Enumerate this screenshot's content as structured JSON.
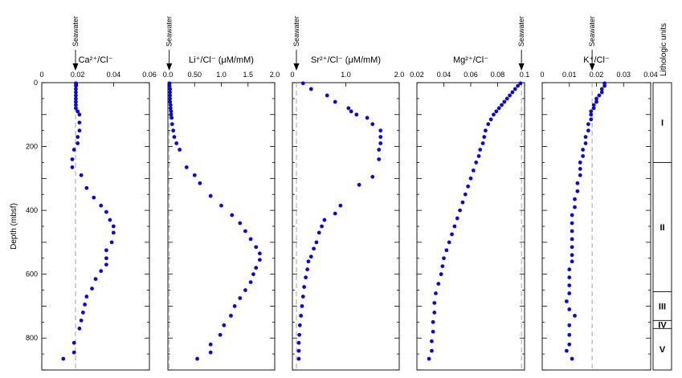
{
  "depth_axis": {
    "label": "Depth (mbsf)",
    "ylim": [
      0,
      900
    ],
    "ticks": [
      0,
      200,
      400,
      600,
      800
    ],
    "minor_step": 50,
    "inverted": true
  },
  "colors": {
    "points": "#0a0ad0",
    "seawater_line": "#999999",
    "axes": "#000000"
  },
  "seawater_label": "Seawater",
  "chart_data": [
    {
      "type": "scatter",
      "title": "Ca²⁺/Cl⁻",
      "xlim": [
        0,
        0.06
      ],
      "ticks": [
        "0",
        "0.02",
        "0.04",
        "0.06"
      ],
      "tick_values": [
        0,
        0.02,
        0.04,
        0.06
      ],
      "seawater": 0.0188,
      "points": [
        [
          0.019,
          2
        ],
        [
          0.019,
          10
        ],
        [
          0.019,
          20
        ],
        [
          0.019,
          30
        ],
        [
          0.019,
          40
        ],
        [
          0.019,
          50
        ],
        [
          0.019,
          60
        ],
        [
          0.019,
          70
        ],
        [
          0.019,
          80
        ],
        [
          0.02,
          90
        ],
        [
          0.021,
          100
        ],
        [
          0.021,
          125
        ],
        [
          0.021,
          150
        ],
        [
          0.02,
          170
        ],
        [
          0.02,
          190
        ],
        [
          0.018,
          210
        ],
        [
          0.017,
          240
        ],
        [
          0.017,
          265
        ],
        [
          0.022,
          290
        ],
        [
          0.025,
          330
        ],
        [
          0.029,
          360
        ],
        [
          0.033,
          385
        ],
        [
          0.036,
          405
        ],
        [
          0.038,
          430
        ],
        [
          0.04,
          450
        ],
        [
          0.04,
          470
        ],
        [
          0.039,
          500
        ],
        [
          0.036,
          525
        ],
        [
          0.036,
          550
        ],
        [
          0.036,
          570
        ],
        [
          0.033,
          590
        ],
        [
          0.03,
          615
        ],
        [
          0.028,
          645
        ],
        [
          0.025,
          670
        ],
        [
          0.024,
          695
        ],
        [
          0.023,
          720
        ],
        [
          0.022,
          745
        ],
        [
          0.021,
          770
        ],
        [
          0.018,
          815
        ],
        [
          0.018,
          845
        ],
        [
          0.012,
          865
        ]
      ]
    },
    {
      "type": "scatter",
      "title": "Li⁺/Cl⁻ (μM/mM)",
      "xlim": [
        0,
        2.0
      ],
      "ticks": [
        "0.0",
        "0.50",
        "1.0",
        "1.5",
        "2.0"
      ],
      "tick_values": [
        0,
        0.5,
        1.0,
        1.5,
        2.0
      ],
      "seawater": 0.025,
      "points": [
        [
          0.03,
          2
        ],
        [
          0.03,
          10
        ],
        [
          0.04,
          20
        ],
        [
          0.04,
          30
        ],
        [
          0.04,
          40
        ],
        [
          0.04,
          50
        ],
        [
          0.04,
          60
        ],
        [
          0.05,
          70
        ],
        [
          0.05,
          80
        ],
        [
          0.06,
          90
        ],
        [
          0.06,
          100
        ],
        [
          0.07,
          110
        ],
        [
          0.08,
          130
        ],
        [
          0.1,
          150
        ],
        [
          0.12,
          170
        ],
        [
          0.16,
          190
        ],
        [
          0.22,
          210
        ],
        [
          0.35,
          265
        ],
        [
          0.5,
          290
        ],
        [
          0.6,
          315
        ],
        [
          0.8,
          355
        ],
        [
          1.0,
          385
        ],
        [
          1.2,
          415
        ],
        [
          1.35,
          440
        ],
        [
          1.45,
          465
        ],
        [
          1.55,
          490
        ],
        [
          1.65,
          515
        ],
        [
          1.72,
          535
        ],
        [
          1.72,
          555
        ],
        [
          1.65,
          580
        ],
        [
          1.6,
          600
        ],
        [
          1.55,
          625
        ],
        [
          1.45,
          650
        ],
        [
          1.35,
          675
        ],
        [
          1.25,
          700
        ],
        [
          1.18,
          730
        ],
        [
          1.05,
          760
        ],
        [
          0.98,
          790
        ],
        [
          0.8,
          820
        ],
        [
          0.8,
          845
        ],
        [
          0.55,
          865
        ]
      ]
    },
    {
      "type": "scatter",
      "title": "Sr²⁺/Cl⁻ (μM/mM)",
      "xlim": [
        0,
        2.0
      ],
      "ticks": [
        "0",
        "1.0",
        "2.0"
      ],
      "tick_values": [
        0,
        1.0,
        2.0
      ],
      "seawater": 0.075,
      "points": [
        [
          0.2,
          2
        ],
        [
          0.35,
          20
        ],
        [
          0.65,
          40
        ],
        [
          0.8,
          60
        ],
        [
          1.05,
          80
        ],
        [
          1.1,
          90
        ],
        [
          1.2,
          100
        ],
        [
          1.4,
          110
        ],
        [
          1.5,
          130
        ],
        [
          1.65,
          150
        ],
        [
          1.65,
          170
        ],
        [
          1.65,
          190
        ],
        [
          1.62,
          210
        ],
        [
          1.62,
          240
        ],
        [
          1.5,
          295
        ],
        [
          1.25,
          320
        ],
        [
          0.9,
          385
        ],
        [
          0.8,
          410
        ],
        [
          0.6,
          430
        ],
        [
          0.55,
          450
        ],
        [
          0.5,
          470
        ],
        [
          0.45,
          500
        ],
        [
          0.4,
          520
        ],
        [
          0.35,
          545
        ],
        [
          0.3,
          560
        ],
        [
          0.28,
          585
        ],
        [
          0.25,
          610
        ],
        [
          0.22,
          640
        ],
        [
          0.2,
          670
        ],
        [
          0.18,
          700
        ],
        [
          0.16,
          730
        ],
        [
          0.14,
          760
        ],
        [
          0.13,
          790
        ],
        [
          0.12,
          815
        ],
        [
          0.12,
          840
        ],
        [
          0.12,
          865
        ]
      ]
    },
    {
      "type": "scatter",
      "title": "Mg²⁺/Cl⁻",
      "xlim": [
        0.02,
        0.1
      ],
      "ticks": [
        "0.02",
        "0.04",
        "0.06",
        "0.08",
        "0.1"
      ],
      "tick_values": [
        0.02,
        0.04,
        0.06,
        0.08,
        0.1
      ],
      "seawater": 0.0977,
      "points": [
        [
          0.097,
          2
        ],
        [
          0.095,
          10
        ],
        [
          0.093,
          20
        ],
        [
          0.091,
          30
        ],
        [
          0.089,
          40
        ],
        [
          0.087,
          50
        ],
        [
          0.085,
          60
        ],
        [
          0.083,
          70
        ],
        [
          0.081,
          80
        ],
        [
          0.079,
          90
        ],
        [
          0.077,
          100
        ],
        [
          0.075,
          115
        ],
        [
          0.073,
          130
        ],
        [
          0.071,
          150
        ],
        [
          0.07,
          170
        ],
        [
          0.069,
          190
        ],
        [
          0.067,
          210
        ],
        [
          0.066,
          230
        ],
        [
          0.064,
          250
        ],
        [
          0.062,
          275
        ],
        [
          0.06,
          300
        ],
        [
          0.058,
          325
        ],
        [
          0.056,
          350
        ],
        [
          0.054,
          375
        ],
        [
          0.052,
          400
        ],
        [
          0.05,
          425
        ],
        [
          0.048,
          450
        ],
        [
          0.046,
          475
        ],
        [
          0.044,
          500
        ],
        [
          0.042,
          525
        ],
        [
          0.04,
          550
        ],
        [
          0.039,
          575
        ],
        [
          0.038,
          600
        ],
        [
          0.036,
          630
        ],
        [
          0.034,
          660
        ],
        [
          0.033,
          690
        ],
        [
          0.033,
          720
        ],
        [
          0.032,
          750
        ],
        [
          0.032,
          780
        ],
        [
          0.031,
          810
        ],
        [
          0.031,
          840
        ],
        [
          0.029,
          865
        ]
      ]
    },
    {
      "type": "scatter",
      "title": "K⁺/Cl⁻",
      "xlim": [
        0,
        0.04
      ],
      "ticks": [
        "0",
        "0.01",
        "0.02",
        "0.03",
        "0.04"
      ],
      "tick_values": [
        0,
        0.01,
        0.02,
        0.03,
        0.04
      ],
      "seawater": 0.0184,
      "points": [
        [
          0.023,
          2
        ],
        [
          0.023,
          10
        ],
        [
          0.022,
          20
        ],
        [
          0.022,
          30
        ],
        [
          0.021,
          40
        ],
        [
          0.02,
          50
        ],
        [
          0.02,
          60
        ],
        [
          0.019,
          70
        ],
        [
          0.019,
          80
        ],
        [
          0.018,
          90
        ],
        [
          0.018,
          100
        ],
        [
          0.018,
          115
        ],
        [
          0.017,
          130
        ],
        [
          0.017,
          150
        ],
        [
          0.016,
          170
        ],
        [
          0.016,
          190
        ],
        [
          0.015,
          210
        ],
        [
          0.015,
          230
        ],
        [
          0.014,
          250
        ],
        [
          0.014,
          270
        ],
        [
          0.014,
          290
        ],
        [
          0.013,
          315
        ],
        [
          0.013,
          340
        ],
        [
          0.012,
          365
        ],
        [
          0.012,
          390
        ],
        [
          0.011,
          415
        ],
        [
          0.011,
          440
        ],
        [
          0.011,
          465
        ],
        [
          0.011,
          490
        ],
        [
          0.011,
          515
        ],
        [
          0.011,
          540
        ],
        [
          0.011,
          560
        ],
        [
          0.01,
          585
        ],
        [
          0.01,
          610
        ],
        [
          0.01,
          635
        ],
        [
          0.01,
          660
        ],
        [
          0.009,
          685
        ],
        [
          0.01,
          710
        ],
        [
          0.012,
          730
        ],
        [
          0.01,
          760
        ],
        [
          0.01,
          790
        ],
        [
          0.01,
          820
        ],
        [
          0.009,
          840
        ],
        [
          0.011,
          865
        ]
      ]
    }
  ],
  "lithology": {
    "title": "Lithologic units",
    "units": [
      {
        "label": "I",
        "top": 0,
        "bottom": 250
      },
      {
        "label": "II",
        "top": 250,
        "bottom": 655
      },
      {
        "label": "III",
        "top": 655,
        "bottom": 745
      },
      {
        "label": "IV",
        "top": 745,
        "bottom": 770
      },
      {
        "label": "V",
        "top": 770,
        "bottom": 900
      }
    ]
  }
}
